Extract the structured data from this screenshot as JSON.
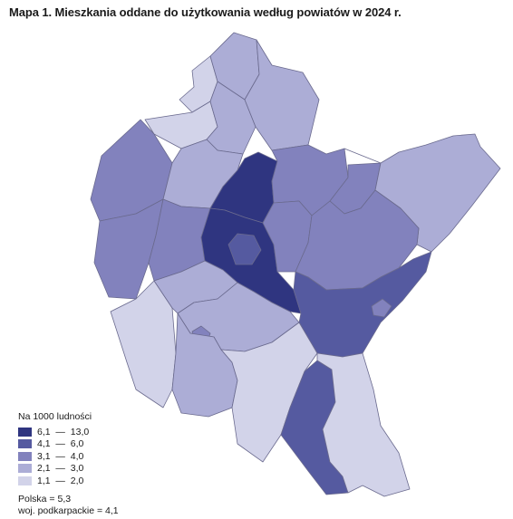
{
  "title": "Mapa 1. Mieszkania oddane do użytkowania według powiatów w 2024 r.",
  "legend": {
    "title": "Na 1000 ludności",
    "classes": [
      {
        "low": "6,1",
        "high": "13,0",
        "color": "#2f3580"
      },
      {
        "low": "4,1",
        "high": "6,0",
        "color": "#555aa0"
      },
      {
        "low": "3,1",
        "high": "4,0",
        "color": "#8282bd"
      },
      {
        "low": "2,1",
        "high": "3,0",
        "color": "#acadd6"
      },
      {
        "low": "1,1",
        "high": "2,0",
        "color": "#d2d3e9"
      }
    ]
  },
  "stats": {
    "poland": "Polska  =  5,3",
    "region": "woj. podkarpackie  =  4,1"
  }
}
